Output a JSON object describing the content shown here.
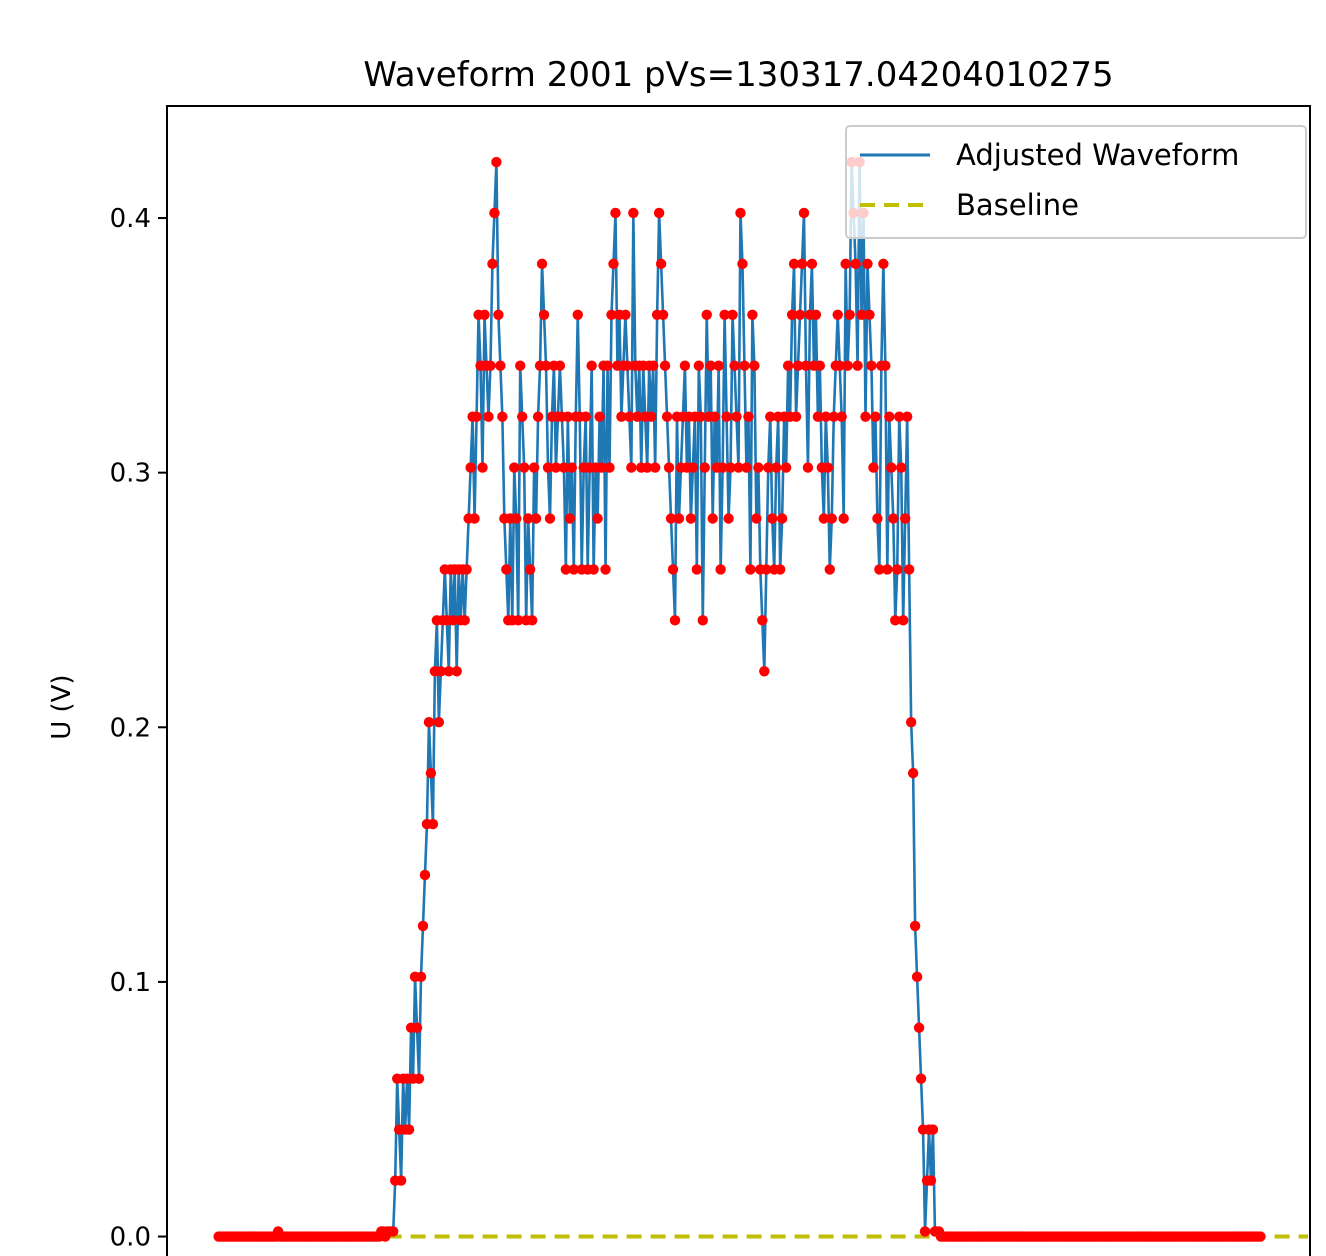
{
  "chart_data": {
    "type": "line",
    "title": "Waveform 2001 pVs=130317.04204010275",
    "xlabel": "",
    "ylabel": "U (V)",
    "ylim": [
      -0.01,
      0.444
    ],
    "xlim": [
      -26,
      550
    ],
    "y_ticks": [
      0.0,
      0.1,
      0.2,
      0.3,
      0.4
    ],
    "y_tick_labels": [
      "0.0",
      "0.1",
      "0.2",
      "0.3",
      "0.4"
    ],
    "grid": false,
    "legend": {
      "position": "top-right",
      "entries": [
        "Adjusted Waveform",
        "Baseline"
      ]
    },
    "colors": {
      "waveform": "#1f77b4",
      "markers": "#ff0000",
      "baseline": "#bfbf00"
    },
    "series": [
      {
        "name": "Adjusted Waveform",
        "x_start": 0,
        "x_step": 1,
        "values": [
          0,
          0,
          0,
          0,
          0,
          0,
          0,
          0,
          0,
          0,
          0,
          0,
          0,
          0,
          0,
          0,
          0,
          0,
          0,
          0,
          0,
          0,
          0,
          0,
          0,
          0,
          0,
          0,
          0,
          0,
          0.002,
          0,
          0,
          0,
          0,
          0,
          0,
          0,
          0,
          0,
          0,
          0,
          0,
          0,
          0,
          0,
          0,
          0,
          0,
          0,
          0,
          0,
          0,
          0,
          0,
          0,
          0,
          0,
          0,
          0,
          0,
          0,
          0,
          0,
          0,
          0,
          0,
          0,
          0,
          0,
          0,
          0,
          0,
          0,
          0,
          0,
          0,
          0,
          0,
          0,
          0,
          0,
          0.002,
          0.002,
          0,
          0.002,
          0.002,
          0.002,
          0.002,
          0.022,
          0.062,
          0.042,
          0.022,
          0.062,
          0.042,
          0.062,
          0.042,
          0.082,
          0.062,
          0.102,
          0.082,
          0.062,
          0.102,
          0.122,
          0.142,
          0.162,
          0.202,
          0.182,
          0.162,
          0.222,
          0.242,
          0.202,
          0.222,
          0.242,
          0.262,
          0.242,
          0.222,
          0.262,
          0.242,
          0.262,
          0.222,
          0.262,
          0.242,
          0.262,
          0.242,
          0.262,
          0.282,
          0.302,
          0.322,
          0.282,
          0.322,
          0.362,
          0.342,
          0.302,
          0.362,
          0.342,
          0.322,
          0.342,
          0.382,
          0.402,
          0.422,
          0.362,
          0.342,
          0.322,
          0.282,
          0.262,
          0.242,
          0.282,
          0.242,
          0.302,
          0.282,
          0.242,
          0.342,
          0.322,
          0.302,
          0.242,
          0.282,
          0.262,
          0.242,
          0.302,
          0.282,
          0.322,
          0.342,
          0.382,
          0.362,
          0.342,
          0.302,
          0.282,
          0.322,
          0.342,
          0.302,
          0.322,
          0.342,
          0.322,
          0.302,
          0.262,
          0.322,
          0.282,
          0.302,
          0.262,
          0.322,
          0.362,
          0.322,
          0.262,
          0.302,
          0.322,
          0.262,
          0.302,
          0.342,
          0.262,
          0.302,
          0.282,
          0.322,
          0.302,
          0.342,
          0.262,
          0.342,
          0.302,
          0.362,
          0.382,
          0.402,
          0.342,
          0.362,
          0.322,
          0.342,
          0.362,
          0.342,
          0.322,
          0.302,
          0.402,
          0.342,
          0.322,
          0.342,
          0.302,
          0.342,
          0.322,
          0.302,
          0.342,
          0.322,
          0.342,
          0.302,
          0.362,
          0.402,
          0.382,
          0.362,
          0.342,
          0.322,
          0.302,
          0.282,
          0.262,
          0.242,
          0.322,
          0.282,
          0.302,
          0.322,
          0.342,
          0.302,
          0.322,
          0.282,
          0.302,
          0.322,
          0.262,
          0.342,
          0.322,
          0.242,
          0.302,
          0.362,
          0.322,
          0.342,
          0.282,
          0.322,
          0.302,
          0.342,
          0.262,
          0.302,
          0.362,
          0.322,
          0.282,
          0.302,
          0.362,
          0.342,
          0.322,
          0.302,
          0.402,
          0.382,
          0.342,
          0.302,
          0.322,
          0.262,
          0.362,
          0.342,
          0.282,
          0.302,
          0.262,
          0.242,
          0.222,
          0.262,
          0.302,
          0.322,
          0.282,
          0.262,
          0.302,
          0.322,
          0.262,
          0.282,
          0.322,
          0.302,
          0.342,
          0.322,
          0.362,
          0.382,
          0.322,
          0.342,
          0.362,
          0.382,
          0.402,
          0.342,
          0.302,
          0.362,
          0.382,
          0.342,
          0.362,
          0.322,
          0.342,
          0.302,
          0.282,
          0.322,
          0.302,
          0.262,
          0.282,
          0.322,
          0.342,
          0.362,
          0.342,
          0.322,
          0.282,
          0.382,
          0.342,
          0.362,
          0.422,
          0.402,
          0.382,
          0.342,
          0.422,
          0.362,
          0.402,
          0.322,
          0.382,
          0.362,
          0.342,
          0.302,
          0.322,
          0.282,
          0.262,
          0.342,
          0.382,
          0.342,
          0.262,
          0.322,
          0.302,
          0.282,
          0.242,
          0.262,
          0.322,
          0.302,
          0.242,
          0.282,
          0.322,
          0.262,
          0.202,
          0.182,
          0.122,
          0.102,
          0.082,
          0.062,
          0.042,
          0.002,
          0.022,
          0.042,
          0.022,
          0.042,
          0.002,
          0.002,
          0.002,
          0,
          0,
          0,
          0,
          0,
          0,
          0,
          0,
          0,
          0,
          0,
          0,
          0,
          0,
          0,
          0,
          0,
          0,
          0,
          0,
          0,
          0,
          0,
          0,
          0,
          0,
          0,
          0,
          0,
          0,
          0,
          0,
          0,
          0,
          0,
          0,
          0,
          0,
          0,
          0,
          0,
          0,
          0,
          0,
          0,
          0,
          0,
          0,
          0,
          0,
          0,
          0,
          0,
          0,
          0,
          0,
          0,
          0,
          0,
          0,
          0,
          0,
          0,
          0,
          0,
          0,
          0,
          0,
          0,
          0,
          0,
          0,
          0,
          0,
          0,
          0,
          0,
          0,
          0,
          0,
          0,
          0,
          0,
          0,
          0,
          0,
          0,
          0,
          0,
          0,
          0,
          0,
          0,
          0,
          0,
          0,
          0,
          0,
          0,
          0,
          0,
          0,
          0,
          0,
          0,
          0,
          0,
          0,
          0,
          0,
          0,
          0,
          0,
          0,
          0,
          0,
          0,
          0,
          0,
          0,
          0,
          0,
          0,
          0,
          0,
          0,
          0,
          0,
          0,
          0,
          0,
          0,
          0,
          0,
          0,
          0,
          0,
          0,
          0,
          0,
          0,
          0,
          0,
          0,
          0,
          0,
          0,
          0,
          0,
          0,
          0,
          0,
          0,
          0,
          0,
          0,
          0,
          0,
          0,
          0,
          0,
          0
        ]
      },
      {
        "name": "Baseline",
        "x": [
          0,
          549
        ],
        "values": [
          0,
          0
        ]
      }
    ]
  }
}
